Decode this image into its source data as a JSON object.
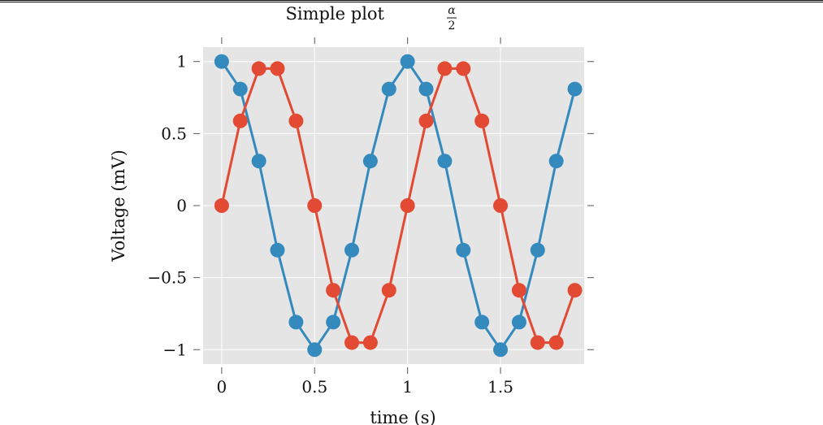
{
  "chart_data": {
    "type": "line",
    "title": "Simple plot",
    "title_math": {
      "numerator": "α",
      "denominator": "2"
    },
    "xlabel": "time (s)",
    "ylabel": "Voltage (mV)",
    "xlim": [
      -0.1,
      1.95
    ],
    "ylim": [
      -1.1,
      1.1
    ],
    "xticks": [
      0,
      0.5,
      1,
      1.5
    ],
    "xtick_labels": [
      "0",
      "0.5",
      "1",
      "1.5"
    ],
    "yticks": [
      -1,
      -0.5,
      0,
      0.5,
      1
    ],
    "ytick_labels": [
      "−1",
      "−0.5",
      "0",
      "0.5",
      "1"
    ],
    "grid": true,
    "style": "ggplot",
    "x": [
      0,
      0.1,
      0.2,
      0.3,
      0.4,
      0.5,
      0.6,
      0.7,
      0.8,
      0.9,
      1.0,
      1.1,
      1.2,
      1.3,
      1.4,
      1.5,
      1.6,
      1.7,
      1.8,
      1.9
    ],
    "series": [
      {
        "color": "#348ABD",
        "marker": "circle",
        "values": [
          1,
          0.809,
          0.309,
          -0.309,
          -0.809,
          -1,
          -0.809,
          -0.309,
          0.309,
          0.809,
          1,
          0.809,
          0.309,
          -0.309,
          -0.809,
          -1,
          -0.809,
          -0.309,
          0.309,
          0.809
        ]
      },
      {
        "color": "#E24A33",
        "marker": "circle",
        "values": [
          0,
          0.588,
          0.951,
          0.951,
          0.588,
          0,
          -0.588,
          -0.951,
          -0.951,
          -0.588,
          0,
          0.588,
          0.951,
          0.951,
          0.588,
          0,
          -0.588,
          -0.951,
          -0.951,
          -0.588
        ]
      }
    ]
  }
}
